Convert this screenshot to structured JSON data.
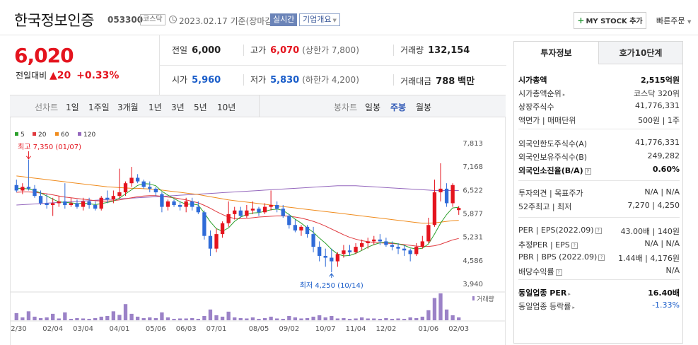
{
  "header": {
    "name": "한국정보인증",
    "code": "053300",
    "market": "코스닥",
    "as_of": "2023.02.17 기준(장마감)",
    "realtime": "실시간",
    "corp_info": "기업개요",
    "mystock": "MY STOCK 추가",
    "quick_order": "빠른주문"
  },
  "price": {
    "current": "6,020",
    "change_label": "전일대비",
    "change": "20",
    "change_pct": "+0.33%"
  },
  "summary": {
    "prev": {
      "label": "전일",
      "value": "6,000"
    },
    "high": {
      "label": "고가",
      "value": "6,070",
      "sub": "(상한가 7,800)"
    },
    "volume": {
      "label": "거래량",
      "value": "132,154"
    },
    "open": {
      "label": "시가",
      "value": "5,960"
    },
    "low": {
      "label": "저가",
      "value": "5,830",
      "sub": "(하한가 4,200)"
    },
    "amount": {
      "label": "거래대금",
      "value": "788",
      "unit": "백만"
    }
  },
  "tabs": {
    "line_label": "선차트",
    "line_items": [
      "1일",
      "1주일",
      "3개월",
      "1년",
      "3년",
      "5년",
      "10년"
    ],
    "candle_label": "봉차트",
    "candle_items": [
      "일봉",
      "주봉",
      "월봉"
    ],
    "candle_active": "주봉"
  },
  "colors": {
    "up": "#e4141e",
    "down": "#2f6bd8",
    "ma5": "#2ca02c",
    "ma20": "#e0393e",
    "ma60": "#f08c1e",
    "ma120": "#9467bd"
  },
  "chart_data": {
    "type": "candlestick",
    "legend": [
      {
        "name": "5",
        "color": "#2ca02c"
      },
      {
        "name": "20",
        "color": "#e0393e"
      },
      {
        "name": "60",
        "color": "#f08c1e"
      },
      {
        "name": "120",
        "color": "#9467bd"
      }
    ],
    "y_ticks": [
      "7,813",
      "7,168",
      "6,522",
      "5,877",
      "5,231",
      "4,586",
      "3,940"
    ],
    "ylim": [
      3940,
      7813
    ],
    "x_labels": [
      "12/30",
      "02/04",
      "03/04",
      "04/01",
      "05/06",
      "06/03",
      "07/01",
      "08/05",
      "09/02",
      "10/07",
      "11/04",
      "12/02",
      "01/06",
      "02/03"
    ],
    "high_annotation": "최고 7,350 (01/07)",
    "low_annotation": "최저 4,250 (10/14)",
    "volume_legend": "거래량",
    "candles": [
      [
        6650,
        6800,
        6450,
        6500
      ],
      [
        6500,
        6700,
        6400,
        6600
      ],
      [
        6600,
        7350,
        6500,
        6550
      ],
      [
        6550,
        6650,
        6300,
        6350
      ],
      [
        6350,
        6500,
        6100,
        6150
      ],
      [
        6150,
        6400,
        6000,
        6100
      ],
      [
        6100,
        6300,
        5800,
        6150
      ],
      [
        6150,
        6350,
        6050,
        6200
      ],
      [
        6200,
        6700,
        6000,
        6100
      ],
      [
        6100,
        6300,
        6050,
        6150
      ],
      [
        6150,
        6250,
        6000,
        6050
      ],
      [
        6050,
        6300,
        5950,
        6200
      ],
      [
        6200,
        6300,
        6000,
        6100
      ],
      [
        6100,
        6200,
        5950,
        6000
      ],
      [
        6000,
        6350,
        5950,
        6300
      ],
      [
        6300,
        6500,
        6150,
        6250
      ],
      [
        6250,
        6500,
        6150,
        6350
      ],
      [
        6350,
        7100,
        6300,
        6450
      ],
      [
        6450,
        6750,
        6350,
        6700
      ],
      [
        6700,
        7150,
        6600,
        6850
      ],
      [
        6850,
        6950,
        6700,
        6750
      ],
      [
        6750,
        6800,
        6550,
        6600
      ],
      [
        6600,
        6750,
        6450,
        6550
      ],
      [
        6550,
        6600,
        6350,
        6450
      ],
      [
        6400,
        6450,
        5900,
        6050
      ],
      [
        6050,
        6250,
        5950,
        6200
      ],
      [
        6200,
        6250,
        6050,
        6100
      ],
      [
        6100,
        6200,
        5950,
        6050
      ],
      [
        6050,
        6300,
        5900,
        6200
      ],
      [
        6200,
        6300,
        5950,
        6050
      ],
      [
        6050,
        6200,
        5850,
        5900
      ],
      [
        5900,
        5950,
        5150,
        5250
      ],
      [
        5250,
        5400,
        4700,
        4900
      ],
      [
        4900,
        5450,
        4800,
        5300
      ],
      [
        5300,
        5650,
        5200,
        5600
      ],
      [
        5600,
        6200,
        5500,
        5850
      ],
      [
        5850,
        6050,
        5700,
        5950
      ],
      [
        5950,
        6050,
        5750,
        5800
      ],
      [
        5800,
        6100,
        5750,
        5950
      ],
      [
        5950,
        6200,
        5850,
        6000
      ],
      [
        6000,
        6050,
        5800,
        5900
      ],
      [
        5900,
        6150,
        5850,
        6050
      ],
      [
        6050,
        6500,
        5950,
        6100
      ],
      [
        6100,
        6200,
        5900,
        6000
      ],
      [
        6000,
        6100,
        5750,
        5800
      ],
      [
        5800,
        5850,
        5450,
        5550
      ],
      [
        5550,
        5700,
        5350,
        5400
      ],
      [
        5400,
        5550,
        5250,
        5500
      ],
      [
        5500,
        5550,
        5200,
        5300
      ],
      [
        5300,
        5500,
        4800,
        4950
      ],
      [
        4950,
        5100,
        4550,
        4700
      ],
      [
        4700,
        4900,
        4400,
        4650
      ],
      [
        4650,
        4900,
        4250,
        4550
      ],
      [
        4550,
        4800,
        4400,
        4750
      ],
      [
        4750,
        5000,
        4650,
        4850
      ],
      [
        4850,
        5000,
        4700,
        4800
      ],
      [
        4800,
        5050,
        4750,
        4950
      ],
      [
        4950,
        5150,
        4850,
        5050
      ],
      [
        5050,
        5200,
        4900,
        5100
      ],
      [
        5100,
        5250,
        5000,
        5150
      ],
      [
        5150,
        5300,
        5000,
        5100
      ],
      [
        5100,
        5200,
        4950,
        5000
      ],
      [
        5000,
        5100,
        4850,
        4950
      ],
      [
        4950,
        5050,
        4750,
        4900
      ],
      [
        4900,
        5000,
        4700,
        4850
      ],
      [
        4850,
        4900,
        4550,
        4750
      ],
      [
        4750,
        5050,
        4700,
        4950
      ],
      [
        4950,
        5250,
        4900,
        5100
      ],
      [
        5100,
        5750,
        5050,
        5550
      ],
      [
        5550,
        6800,
        5500,
        6450
      ],
      [
        6450,
        7250,
        6200,
        6550
      ],
      [
        6550,
        6700,
        6050,
        6150
      ],
      [
        6150,
        6700,
        6050,
        6650
      ],
      [
        5960,
        6070,
        5830,
        6020
      ]
    ],
    "ma5": [
      6550,
      6560,
      6540,
      6500,
      6430,
      6350,
      6260,
      6190,
      6170,
      6160,
      6140,
      6150,
      6140,
      6110,
      6140,
      6170,
      6210,
      6290,
      6410,
      6520,
      6640,
      6690,
      6680,
      6630,
      6480,
      6370,
      6280,
      6190,
      6120,
      6130,
      6100,
      5880,
      5640,
      5450,
      5380,
      5470,
      5650,
      5770,
      5840,
      5880,
      5890,
      5930,
      5970,
      5990,
      5950,
      5840,
      5710,
      5600,
      5470,
      5350,
      5190,
      5050,
      4880,
      4750,
      4700,
      4710,
      4770,
      4850,
      4940,
      5010,
      5060,
      5080,
      5060,
      5030,
      4990,
      4920,
      4890,
      4910,
      5030,
      5300,
      5600,
      5840,
      6020,
      6040
    ],
    "ma20": [
      6450,
      6460,
      6460,
      6450,
      6430,
      6410,
      6380,
      6350,
      6320,
      6300,
      6280,
      6260,
      6240,
      6220,
      6210,
      6210,
      6220,
      6240,
      6270,
      6300,
      6330,
      6350,
      6360,
      6360,
      6340,
      6320,
      6300,
      6270,
      6240,
      6200,
      6160,
      6090,
      6010,
      5920,
      5840,
      5770,
      5730,
      5720,
      5730,
      5750,
      5770,
      5780,
      5790,
      5800,
      5800,
      5790,
      5770,
      5740,
      5700,
      5650,
      5590,
      5520,
      5440,
      5360,
      5280,
      5210,
      5160,
      5120,
      5090,
      5070,
      5060,
      5050,
      5040,
      5030,
      5010,
      4990,
      4970,
      4960,
      4960,
      4980,
      5020,
      5080,
      5140,
      5180
    ],
    "ma60": [
      6900,
      6880,
      6860,
      6840,
      6820,
      6800,
      6780,
      6760,
      6740,
      6720,
      6700,
      6680,
      6660,
      6640,
      6620,
      6600,
      6590,
      6580,
      6570,
      6560,
      6560,
      6550,
      6540,
      6530,
      6510,
      6490,
      6470,
      6450,
      6430,
      6410,
      6390,
      6360,
      6330,
      6300,
      6270,
      6240,
      6220,
      6200,
      6180,
      6160,
      6140,
      6120,
      6100,
      6080,
      6060,
      6040,
      6020,
      6000,
      5980,
      5960,
      5940,
      5920,
      5900,
      5880,
      5860,
      5840,
      5820,
      5800,
      5780,
      5760,
      5740,
      5720,
      5700,
      5680,
      5660,
      5640,
      5620,
      5600,
      5600,
      5610,
      5630,
      5650,
      5670,
      5680
    ],
    "ma120": [
      6100,
      6110,
      6120,
      6130,
      6140,
      6150,
      6160,
      6170,
      6180,
      6190,
      6200,
      6210,
      6220,
      6230,
      6240,
      6250,
      6260,
      6270,
      6280,
      6290,
      6300,
      6310,
      6320,
      6330,
      6340,
      6350,
      6360,
      6370,
      6380,
      6390,
      6400,
      6410,
      6420,
      6430,
      6440,
      6450,
      6460,
      6470,
      6480,
      6490,
      6500,
      6510,
      6520,
      6530,
      6540,
      6550,
      6560,
      6570,
      6580,
      6590,
      6600,
      6610,
      6620,
      6630,
      6630,
      6630,
      6630,
      6620,
      6610,
      6600,
      6590,
      6580,
      6570,
      6560,
      6550,
      6540,
      6530,
      6520,
      6510,
      6500,
      6500,
      6500,
      6500,
      6500
    ],
    "volume": [
      20,
      8,
      25,
      10,
      6,
      8,
      18,
      5,
      22,
      4,
      6,
      5,
      4,
      6,
      10,
      12,
      25,
      15,
      45,
      18,
      10,
      6,
      8,
      6,
      22,
      8,
      4,
      5,
      5,
      6,
      4,
      12,
      30,
      14,
      10,
      24,
      8,
      6,
      5,
      8,
      4,
      6,
      10,
      5,
      4,
      12,
      8,
      5,
      6,
      10,
      14,
      8,
      12,
      5,
      6,
      4,
      5,
      8,
      5,
      5,
      4,
      6,
      4,
      5,
      4,
      8,
      6,
      10,
      28,
      62,
      75,
      30,
      14,
      8
    ]
  },
  "invest": {
    "tab_active": "투자정보",
    "tab_other": "호가10단계",
    "rows1": [
      {
        "k": "시가총액",
        "v": "2,515억원",
        "bold": true
      },
      {
        "k": "시가총액순위",
        "v": "코스닥 320위",
        "caret": true
      },
      {
        "k": "상장주식수",
        "v": "41,776,331"
      },
      {
        "k": "액면가 | 매매단위",
        "v": "500원 | 1주"
      }
    ],
    "rows2": [
      {
        "k": "외국인한도주식수(A)",
        "v": "41,776,331"
      },
      {
        "k": "외국인보유주식수(B)",
        "v": "249,282"
      },
      {
        "k": "외국인소진율(B/A)",
        "v": "0.60%",
        "bold": true,
        "info": true
      }
    ],
    "rows3": [
      {
        "k": "투자의견 | 목표주가",
        "v": "N/A | N/A"
      },
      {
        "k": "52주최고 | 최저",
        "v": "7,270 | 4,250"
      }
    ],
    "rows4": [
      {
        "k": "PER | EPS(2022.09)",
        "v": "43.00배 | 140원",
        "info": true
      },
      {
        "k": "추정PER | EPS",
        "v": "N/A | N/A",
        "info": true
      },
      {
        "k": "PBR | BPS (2022.09)",
        "v": "1.44배 | 4,176원",
        "info": true
      },
      {
        "k": "배당수익률",
        "v": "N/A",
        "info": true
      }
    ],
    "rows5": [
      {
        "k": "동일업종 PER",
        "v": "16.40배",
        "bold": true,
        "caret": true
      },
      {
        "k": "동일업종 등락률",
        "v": "-1.33%",
        "neg": true,
        "caret": true
      }
    ]
  }
}
